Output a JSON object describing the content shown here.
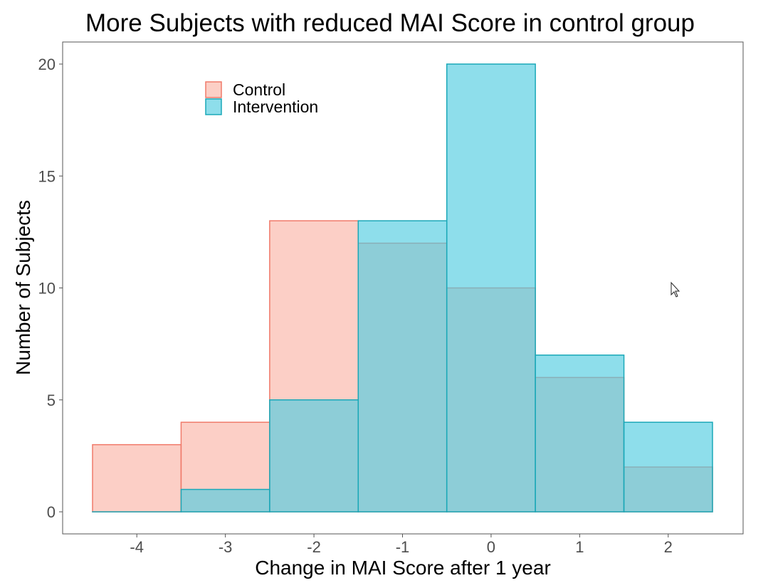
{
  "chart_data": {
    "type": "bar",
    "title": "More Subjects with reduced MAI Score in control group",
    "xlabel": "Change in MAI Score after 1 year",
    "ylabel": "Number of Subjects",
    "x": [
      -4,
      -3,
      -2,
      -1,
      0,
      1,
      2
    ],
    "x_ticks": [
      "-4",
      "-3",
      "-2",
      "-1",
      "0",
      "1",
      "2"
    ],
    "y_ticks": [
      "0",
      "5",
      "10",
      "15",
      "20"
    ],
    "xlim": [
      -4.5,
      2.5
    ],
    "ylim": [
      0,
      20
    ],
    "series": [
      {
        "name": "Control",
        "values": [
          3,
          4,
          13,
          12,
          10,
          6,
          2
        ],
        "fill": "#fbb6a8",
        "stroke": "#f07a6a"
      },
      {
        "name": "Intervention",
        "values": [
          0,
          1,
          5,
          13,
          20,
          7,
          4
        ],
        "fill": "#52cde0",
        "stroke": "#1aa8b8"
      }
    ],
    "overlay": true,
    "bar_alpha": 0.65,
    "legend_position": "top-left",
    "grid": false
  }
}
